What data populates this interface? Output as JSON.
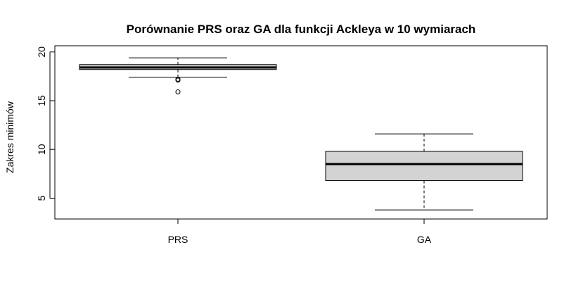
{
  "chart_data": {
    "type": "boxplot",
    "title": "Porównanie PRS oraz GA dla funkcji Ackleya w 10 wymiarach",
    "xlabel": "",
    "ylabel": "Zakres minimów",
    "ylim": [
      3.3,
      20.2
    ],
    "yticks": [
      "5",
      "10",
      "15",
      "20"
    ],
    "categories": [
      "PRS",
      "GA"
    ],
    "series": [
      {
        "name": "PRS",
        "whisker_low": 17.4,
        "q1": 18.2,
        "median": 18.4,
        "q3": 18.7,
        "whisker_high": 19.4,
        "outliers": [
          17.1,
          17.2,
          15.9
        ],
        "fill": "#d3d3d3"
      },
      {
        "name": "GA",
        "whisker_low": 3.8,
        "q1": 6.8,
        "median": 8.5,
        "q3": 9.8,
        "whisker_high": 11.6,
        "outliers": [],
        "fill": "#d3d3d3"
      }
    ],
    "grid": false,
    "legend": "none"
  }
}
